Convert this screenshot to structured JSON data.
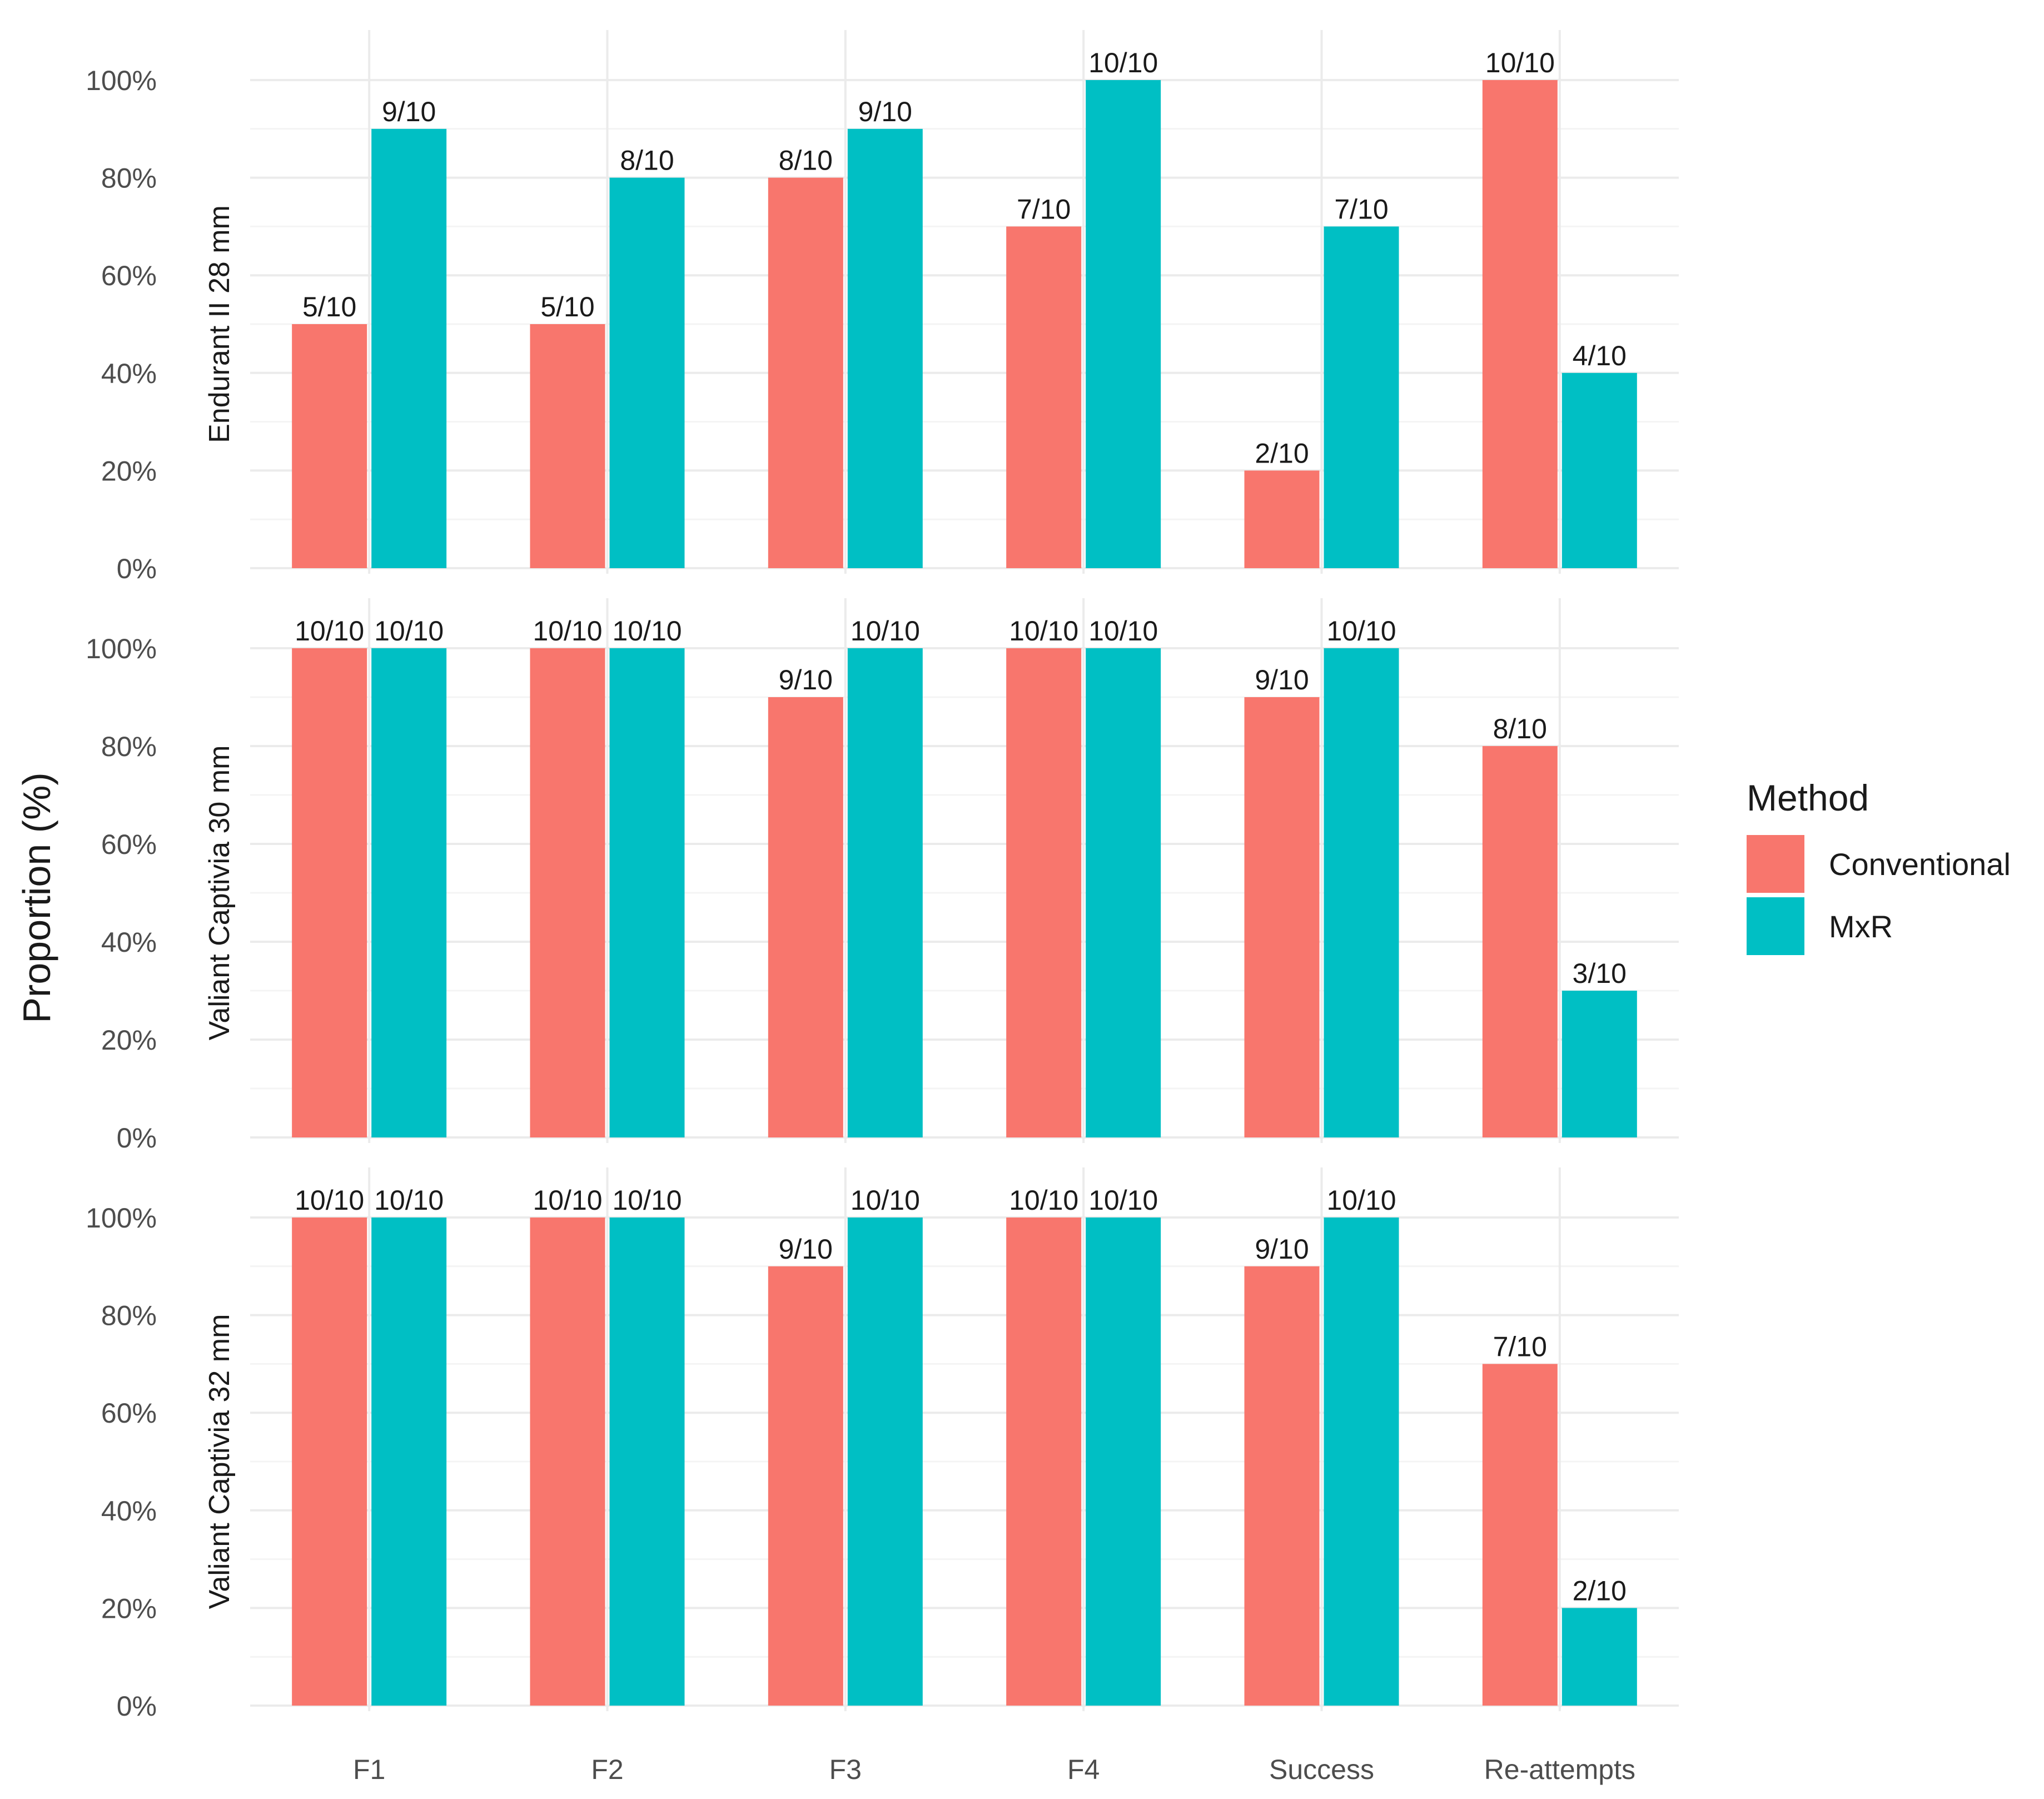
{
  "colors": {
    "Conventional": "#F8766D",
    "MxR": "#00BFC4",
    "grid": "#ebebeb",
    "gridMinor": "#f4f4f4"
  },
  "chart_data": {
    "type": "bar",
    "ylabel": "Proportion (%)",
    "xlabel": "",
    "ylim": [
      0,
      100
    ],
    "y_ticks": [
      "0%",
      "20%",
      "40%",
      "60%",
      "80%",
      "100%"
    ],
    "categories": [
      "F1",
      "F2",
      "F3",
      "F4",
      "Success",
      "Re-attempts"
    ],
    "legend": {
      "title": "Method",
      "position": "right",
      "entries": [
        "Conventional",
        "MxR"
      ]
    },
    "facets": [
      {
        "label": "Endurant II 28 mm",
        "series": [
          {
            "name": "Conventional",
            "values": [
              50,
              50,
              80,
              70,
              20,
              100
            ],
            "labels": [
              "5/10",
              "5/10",
              "8/10",
              "7/10",
              "2/10",
              "10/10"
            ]
          },
          {
            "name": "MxR",
            "values": [
              90,
              80,
              90,
              100,
              70,
              40
            ],
            "labels": [
              "9/10",
              "8/10",
              "9/10",
              "10/10",
              "7/10",
              "4/10"
            ]
          }
        ]
      },
      {
        "label": "Valiant Captivia 30 mm",
        "series": [
          {
            "name": "Conventional",
            "values": [
              100,
              100,
              90,
              100,
              90,
              80
            ],
            "labels": [
              "10/10",
              "10/10",
              "9/10",
              "10/10",
              "9/10",
              "8/10"
            ]
          },
          {
            "name": "MxR",
            "values": [
              100,
              100,
              100,
              100,
              100,
              30
            ],
            "labels": [
              "10/10",
              "10/10",
              "10/10",
              "10/10",
              "10/10",
              "3/10"
            ]
          }
        ]
      },
      {
        "label": "Valiant Captivia 32 mm",
        "series": [
          {
            "name": "Conventional",
            "values": [
              100,
              100,
              90,
              100,
              90,
              70
            ],
            "labels": [
              "10/10",
              "10/10",
              "9/10",
              "10/10",
              "9/10",
              "7/10"
            ]
          },
          {
            "name": "MxR",
            "values": [
              100,
              100,
              100,
              100,
              100,
              20
            ],
            "labels": [
              "10/10",
              "10/10",
              "10/10",
              "10/10",
              "10/10",
              "2/10"
            ]
          }
        ]
      }
    ]
  }
}
